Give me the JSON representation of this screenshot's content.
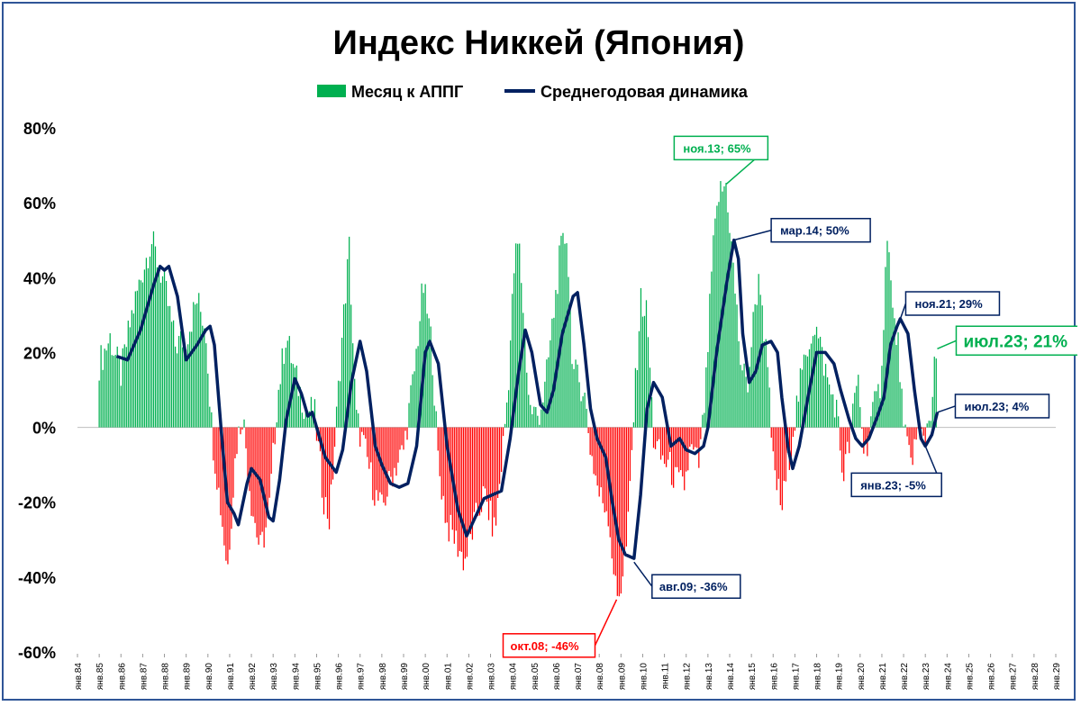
{
  "chart_data": {
    "type": "bar",
    "title": "Индекс Никкей (Япония)",
    "series": [
      {
        "name": "Месяц к АППГ",
        "kind": "bar",
        "positive_color": "#00b050",
        "negative_color": "#ff0000"
      },
      {
        "name": "Среднегодовая динамика",
        "kind": "line",
        "color": "#002060"
      }
    ],
    "ylim": [
      -60,
      80
    ],
    "ytick_values": [
      80,
      60,
      40,
      20,
      0,
      -20,
      -40,
      -60
    ],
    "ytick_labels": [
      "80%",
      "60%",
      "40%",
      "20%",
      "0%",
      "-20%",
      "-40%",
      "-60%"
    ],
    "x_range_years": [
      1984,
      2029
    ],
    "x_tick_labels": [
      "янв.84",
      "янв.85",
      "янв.86",
      "янв.87",
      "янв.88",
      "янв.89",
      "янв.90",
      "янв.91",
      "янв.92",
      "янв.93",
      "янв.94",
      "янв.95",
      "янв.96",
      "янв.97",
      "янв.98",
      "янв.99",
      "янв.00",
      "янв.01",
      "янв.02",
      "янв.03",
      "янв.04",
      "янв.05",
      "янв.06",
      "янв.07",
      "янв.08",
      "янв.09",
      "янв.10",
      "янв.11",
      "янв.12",
      "янв.13",
      "янв.14",
      "янв.15",
      "янв.16",
      "янв.17",
      "янв.18",
      "янв.19",
      "янв.20",
      "янв.21",
      "янв.22",
      "янв.23",
      "янв.24",
      "янв.25",
      "янв.26",
      "янв.27",
      "янв.28",
      "янв.29"
    ],
    "monthly_yoy_anchors": [
      [
        1985.0,
        17
      ],
      [
        1985.5,
        24
      ],
      [
        1986.0,
        14
      ],
      [
        1986.5,
        30
      ],
      [
        1987.0,
        42
      ],
      [
        1987.4,
        50
      ],
      [
        1988.0,
        38
      ],
      [
        1988.5,
        22
      ],
      [
        1989.0,
        24
      ],
      [
        1989.5,
        34
      ],
      [
        1989.9,
        27
      ],
      [
        1990.2,
        -2
      ],
      [
        1990.6,
        -22
      ],
      [
        1990.9,
        -38
      ],
      [
        1991.3,
        -5
      ],
      [
        1991.6,
        4
      ],
      [
        1992.0,
        -20
      ],
      [
        1992.4,
        -33
      ],
      [
        1992.8,
        -24
      ],
      [
        1993.2,
        8
      ],
      [
        1993.6,
        25
      ],
      [
        1994.0,
        14
      ],
      [
        1994.5,
        5
      ],
      [
        1994.9,
        4
      ],
      [
        1995.3,
        -18
      ],
      [
        1995.6,
        -25
      ],
      [
        1996.0,
        10
      ],
      [
        1996.3,
        34
      ],
      [
        1996.5,
        48
      ],
      [
        1996.8,
        3
      ],
      [
        1997.3,
        -8
      ],
      [
        1997.7,
        -18
      ],
      [
        1998.0,
        -22
      ],
      [
        1998.5,
        -12
      ],
      [
        1999.0,
        -6
      ],
      [
        1999.5,
        15
      ],
      [
        1999.9,
        38
      ],
      [
        2000.3,
        22
      ],
      [
        2000.6,
        -10
      ],
      [
        2001.0,
        -26
      ],
      [
        2001.4,
        -30
      ],
      [
        2001.8,
        -36
      ],
      [
        2002.3,
        -25
      ],
      [
        2002.7,
        -18
      ],
      [
        2003.2,
        -28
      ],
      [
        2003.5,
        -10
      ],
      [
        2003.8,
        10
      ],
      [
        2004.1,
        44
      ],
      [
        2004.3,
        50
      ],
      [
        2004.8,
        5
      ],
      [
        2005.2,
        3
      ],
      [
        2005.5,
        10
      ],
      [
        2005.9,
        30
      ],
      [
        2006.2,
        46
      ],
      [
        2006.5,
        52
      ],
      [
        2006.8,
        15
      ],
      [
        2007.3,
        10
      ],
      [
        2007.6,
        -6
      ],
      [
        2008.0,
        -18
      ],
      [
        2008.4,
        -22
      ],
      [
        2008.8,
        -46
      ],
      [
        2009.0,
        -42
      ],
      [
        2009.3,
        -30
      ],
      [
        2009.6,
        5
      ],
      [
        2009.9,
        34
      ],
      [
        2010.2,
        30
      ],
      [
        2010.5,
        -3
      ],
      [
        2010.8,
        -8
      ],
      [
        2011.2,
        -10
      ],
      [
        2011.5,
        -14
      ],
      [
        2011.9,
        -16
      ],
      [
        2012.2,
        -6
      ],
      [
        2012.6,
        -10
      ],
      [
        2012.9,
        10
      ],
      [
        2013.2,
        45
      ],
      [
        2013.5,
        62
      ],
      [
        2013.85,
        65
      ],
      [
        2014.2,
        40
      ],
      [
        2014.5,
        18
      ],
      [
        2014.8,
        10
      ],
      [
        2015.2,
        35
      ],
      [
        2015.4,
        40
      ],
      [
        2015.8,
        10
      ],
      [
        2016.0,
        -10
      ],
      [
        2016.4,
        -22
      ],
      [
        2016.8,
        -5
      ],
      [
        2017.2,
        10
      ],
      [
        2017.6,
        22
      ],
      [
        2017.9,
        28
      ],
      [
        2018.3,
        18
      ],
      [
        2018.6,
        10
      ],
      [
        2018.9,
        6
      ],
      [
        2019.2,
        -13
      ],
      [
        2019.5,
        -5
      ],
      [
        2019.9,
        14
      ],
      [
        2020.2,
        -8
      ],
      [
        2020.5,
        2
      ],
      [
        2020.9,
        10
      ],
      [
        2021.1,
        30
      ],
      [
        2021.25,
        54
      ],
      [
        2021.5,
        30
      ],
      [
        2021.8,
        20
      ],
      [
        2022.0,
        -2
      ],
      [
        2022.3,
        -8
      ],
      [
        2022.7,
        -2
      ],
      [
        2023.0,
        -2
      ],
      [
        2023.25,
        5
      ],
      [
        2023.42,
        15
      ],
      [
        2023.55,
        21
      ]
    ],
    "average_line_anchors": [
      [
        1985.8,
        19
      ],
      [
        1986.3,
        18
      ],
      [
        1986.9,
        26
      ],
      [
        1987.5,
        38
      ],
      [
        1987.8,
        43
      ],
      [
        1988.0,
        42
      ],
      [
        1988.2,
        43
      ],
      [
        1988.6,
        35
      ],
      [
        1989.0,
        18
      ],
      [
        1989.5,
        22
      ],
      [
        1989.9,
        26
      ],
      [
        1990.1,
        27
      ],
      [
        1990.3,
        22
      ],
      [
        1990.6,
        0
      ],
      [
        1990.9,
        -20
      ],
      [
        1991.2,
        -23
      ],
      [
        1991.4,
        -26
      ],
      [
        1991.8,
        -15
      ],
      [
        1992.0,
        -11
      ],
      [
        1992.4,
        -14
      ],
      [
        1992.8,
        -24
      ],
      [
        1993.0,
        -25
      ],
      [
        1993.3,
        -14
      ],
      [
        1993.6,
        2
      ],
      [
        1994.0,
        13
      ],
      [
        1994.3,
        9
      ],
      [
        1994.6,
        3
      ],
      [
        1994.8,
        4
      ],
      [
        1995.1,
        -2
      ],
      [
        1995.4,
        -8
      ],
      [
        1995.9,
        -12
      ],
      [
        1996.2,
        -6
      ],
      [
        1996.6,
        12
      ],
      [
        1997.0,
        23
      ],
      [
        1997.3,
        15
      ],
      [
        1997.7,
        -5
      ],
      [
        1998.0,
        -10
      ],
      [
        1998.4,
        -15
      ],
      [
        1998.8,
        -16
      ],
      [
        1999.2,
        -15
      ],
      [
        1999.6,
        -5
      ],
      [
        2000.0,
        20
      ],
      [
        2000.2,
        23
      ],
      [
        2000.6,
        17
      ],
      [
        2001.0,
        -5
      ],
      [
        2001.5,
        -22
      ],
      [
        2001.9,
        -29
      ],
      [
        2002.3,
        -24
      ],
      [
        2002.7,
        -19
      ],
      [
        2003.1,
        -18
      ],
      [
        2003.5,
        -17
      ],
      [
        2003.9,
        -3
      ],
      [
        2004.3,
        15
      ],
      [
        2004.6,
        26
      ],
      [
        2004.9,
        20
      ],
      [
        2005.3,
        6
      ],
      [
        2005.6,
        4
      ],
      [
        2005.9,
        10
      ],
      [
        2006.3,
        25
      ],
      [
        2006.8,
        35
      ],
      [
        2007.0,
        36
      ],
      [
        2007.3,
        22
      ],
      [
        2007.6,
        5
      ],
      [
        2007.9,
        -3
      ],
      [
        2008.3,
        -8
      ],
      [
        2008.6,
        -20
      ],
      [
        2008.9,
        -30
      ],
      [
        2009.2,
        -34
      ],
      [
        2009.6,
        -35
      ],
      [
        2009.9,
        -18
      ],
      [
        2010.2,
        5
      ],
      [
        2010.5,
        12
      ],
      [
        2010.9,
        8
      ],
      [
        2011.3,
        -5
      ],
      [
        2011.7,
        -3
      ],
      [
        2012.0,
        -6
      ],
      [
        2012.4,
        -7
      ],
      [
        2012.8,
        -5
      ],
      [
        2013.0,
        0
      ],
      [
        2013.4,
        20
      ],
      [
        2013.9,
        40
      ],
      [
        2014.2,
        50
      ],
      [
        2014.4,
        45
      ],
      [
        2014.6,
        25
      ],
      [
        2014.9,
        12
      ],
      [
        2015.2,
        15
      ],
      [
        2015.5,
        22
      ],
      [
        2015.9,
        23
      ],
      [
        2016.2,
        20
      ],
      [
        2016.4,
        8
      ],
      [
        2016.7,
        -6
      ],
      [
        2016.9,
        -11
      ],
      [
        2017.2,
        -5
      ],
      [
        2017.6,
        8
      ],
      [
        2018.0,
        20
      ],
      [
        2018.4,
        20
      ],
      [
        2018.8,
        17
      ],
      [
        2019.1,
        10
      ],
      [
        2019.5,
        2
      ],
      [
        2019.8,
        -3
      ],
      [
        2020.1,
        -5
      ],
      [
        2020.4,
        -3
      ],
      [
        2020.8,
        3
      ],
      [
        2021.1,
        8
      ],
      [
        2021.4,
        22
      ],
      [
        2021.7,
        27
      ],
      [
        2021.85,
        29
      ],
      [
        2022.2,
        25
      ],
      [
        2022.5,
        10
      ],
      [
        2022.8,
        -3
      ],
      [
        2023.0,
        -5
      ],
      [
        2023.3,
        -2
      ],
      [
        2023.55,
        4
      ]
    ],
    "annotations": [
      {
        "label": "ноя.13; 65%",
        "x": 2013.85,
        "y": 65,
        "color": "#00b050"
      },
      {
        "label": "мар.14; 50%",
        "x": 2014.17,
        "y": 50,
        "color": "#002060"
      },
      {
        "label": "ноя.21; 29%",
        "x": 2021.85,
        "y": 29,
        "color": "#002060"
      },
      {
        "label": "июл.23; 21%",
        "x": 2023.55,
        "y": 21,
        "color": "#00b050"
      },
      {
        "label": "июл.23; 4%",
        "x": 2023.55,
        "y": 4,
        "color": "#002060"
      },
      {
        "label": "янв.23; -5%",
        "x": 2023.0,
        "y": -5,
        "color": "#002060"
      },
      {
        "label": "авг.09; -36%",
        "x": 2009.6,
        "y": -36,
        "color": "#002060"
      },
      {
        "label": "окт.08; -46%",
        "x": 2008.8,
        "y": -46,
        "color": "#ff0000"
      }
    ],
    "grid": false,
    "legend_position": "top"
  }
}
